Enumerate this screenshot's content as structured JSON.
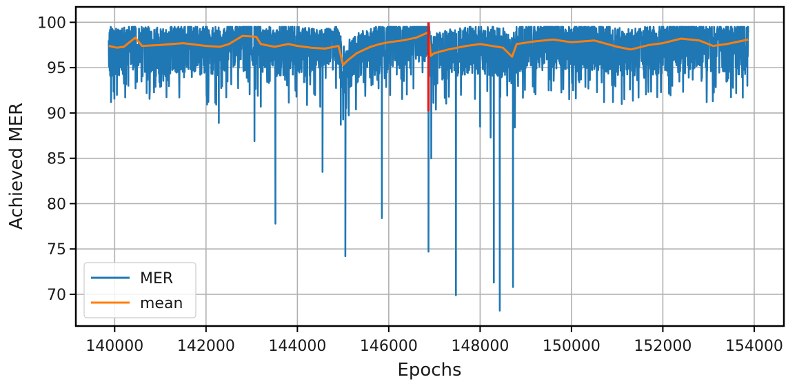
{
  "chart_data": {
    "type": "line",
    "xlabel": "Epochs",
    "ylabel": "Achieved MER",
    "xlim": [
      139150,
      154650
    ],
    "ylim": [
      66.5,
      101.7
    ],
    "x_ticks": [
      140000,
      142000,
      144000,
      146000,
      148000,
      150000,
      152000,
      154000
    ],
    "y_ticks": [
      70,
      75,
      80,
      85,
      90,
      95,
      100
    ],
    "grid": true,
    "legend_position": "bottom-left",
    "series": [
      {
        "name": "MER",
        "color": "#1f77b4",
        "x_range": [
          139870,
          153870
        ],
        "band_upper": 99.5,
        "band_lower": 94.5,
        "dips": [
          [
            139920,
            91.2
          ],
          [
            140050,
            92.0
          ],
          [
            140300,
            93.0
          ],
          [
            140700,
            92.2
          ],
          [
            142280,
            88.9
          ],
          [
            143060,
            86.9
          ],
          [
            143200,
            90.7
          ],
          [
            143520,
            77.8
          ],
          [
            143980,
            91.8
          ],
          [
            144550,
            83.5
          ],
          [
            144950,
            88.7
          ],
          [
            145050,
            74.2
          ],
          [
            145850,
            78.4
          ],
          [
            146870,
            74.7
          ],
          [
            146930,
            85.0
          ],
          [
            147470,
            69.9
          ],
          [
            148000,
            88.5
          ],
          [
            148230,
            87.3
          ],
          [
            148300,
            71.3
          ],
          [
            148430,
            68.2
          ],
          [
            148720,
            70.8
          ],
          [
            148760,
            88.4
          ],
          [
            149500,
            92.5
          ],
          [
            151100,
            91.0
          ],
          [
            153750,
            91.7
          ],
          [
            153850,
            93.0
          ]
        ]
      },
      {
        "name": "mean",
        "color": "#ff7f0e",
        "points": [
          [
            139870,
            97.4
          ],
          [
            140050,
            97.2
          ],
          [
            140200,
            97.3
          ],
          [
            140450,
            98.3
          ],
          [
            140600,
            97.4
          ],
          [
            141000,
            97.5
          ],
          [
            141500,
            97.7
          ],
          [
            142000,
            97.4
          ],
          [
            142300,
            97.3
          ],
          [
            142500,
            97.6
          ],
          [
            142800,
            98.5
          ],
          [
            143100,
            98.4
          ],
          [
            143200,
            97.6
          ],
          [
            143500,
            97.3
          ],
          [
            143800,
            97.6
          ],
          [
            144000,
            97.4
          ],
          [
            144300,
            97.2
          ],
          [
            144600,
            97.1
          ],
          [
            144900,
            97.4
          ],
          [
            145000,
            95.3
          ],
          [
            145100,
            95.8
          ],
          [
            145300,
            96.6
          ],
          [
            145600,
            97.3
          ],
          [
            145800,
            97.6
          ],
          [
            146000,
            97.8
          ],
          [
            146300,
            98.0
          ],
          [
            146600,
            98.3
          ],
          [
            146870,
            98.9
          ],
          [
            146920,
            96.3
          ],
          [
            147000,
            96.6
          ],
          [
            147300,
            97.0
          ],
          [
            147700,
            97.4
          ],
          [
            148000,
            97.6
          ],
          [
            148500,
            97.2
          ],
          [
            148700,
            96.2
          ],
          [
            148800,
            97.6
          ],
          [
            149200,
            97.9
          ],
          [
            149600,
            98.1
          ],
          [
            150000,
            97.8
          ],
          [
            150500,
            98.0
          ],
          [
            151000,
            97.3
          ],
          [
            151300,
            97.0
          ],
          [
            151700,
            97.5
          ],
          [
            152000,
            97.7
          ],
          [
            152400,
            98.2
          ],
          [
            152800,
            98.0
          ],
          [
            153100,
            97.4
          ],
          [
            153400,
            97.6
          ],
          [
            153870,
            98.1
          ]
        ]
      },
      {
        "name": "",
        "color": "#e31a1c",
        "points": [
          [
            146870,
            100.0
          ],
          [
            146870,
            90.2
          ]
        ]
      }
    ]
  }
}
